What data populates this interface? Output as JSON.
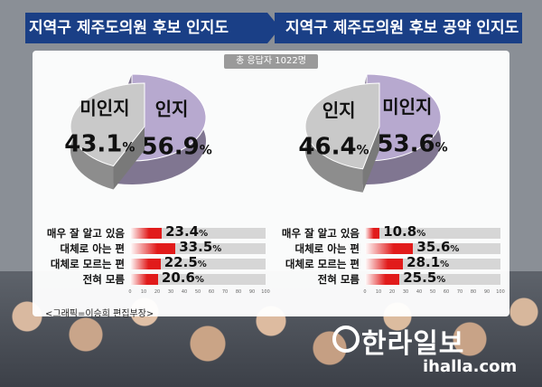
{
  "background": {
    "accent_bar": "#1a3f86",
    "bar_color": "#e11b1b"
  },
  "respondents": "총 응답자 1022명",
  "credit": "<그래픽=이승희 편집부장>",
  "logo": {
    "main": "한라일보",
    "sub": "ihalla.com"
  },
  "chart_data": [
    {
      "type": "pie",
      "title": "지역구 제주도의원 후보 인지도",
      "slices": [
        {
          "label": "인지",
          "value": 56.9,
          "value_text": "56.9",
          "color": "#b7a9cf"
        },
        {
          "label": "미인지",
          "value": 43.1,
          "value_text": "43.1",
          "color": "#c9c9c9"
        }
      ],
      "bars": {
        "type": "bar",
        "categories": [
          "매우 잘 알고 있음",
          "대체로 아는 편",
          "대체로 모르는 편",
          "전혀 모름"
        ],
        "values": [
          23.4,
          33.5,
          22.5,
          20.6
        ],
        "value_text": [
          "23.4",
          "33.5",
          "22.5",
          "20.6"
        ],
        "ylim": [
          0,
          100
        ],
        "ticks": [
          "0",
          "10",
          "20",
          "30",
          "40",
          "50",
          "60",
          "70",
          "80",
          "90",
          "100"
        ]
      }
    },
    {
      "type": "pie",
      "title": "지역구 제주도의원 후보 공약 인지도",
      "slices": [
        {
          "label": "미인지",
          "value": 53.6,
          "value_text": "53.6",
          "color": "#b7a9cf"
        },
        {
          "label": "인지",
          "value": 46.4,
          "value_text": "46.4",
          "color": "#c9c9c9"
        }
      ],
      "bars": {
        "type": "bar",
        "categories": [
          "매우 잘 알고 있음",
          "대체로 아는 편",
          "대체로 모르는 편",
          "전혀 모름"
        ],
        "values": [
          10.8,
          35.6,
          28.1,
          25.5
        ],
        "value_text": [
          "10.8",
          "35.6",
          "28.1",
          "25.5"
        ],
        "ylim": [
          0,
          100
        ],
        "ticks": [
          "0",
          "10",
          "20",
          "30",
          "40",
          "50",
          "60",
          "70",
          "80",
          "90",
          "100"
        ]
      }
    }
  ]
}
